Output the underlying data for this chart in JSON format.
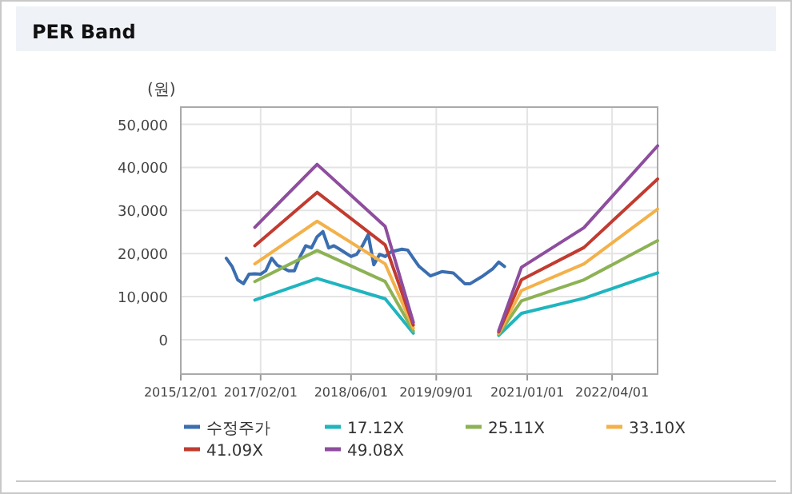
{
  "chart_data": {
    "type": "line",
    "title": "PER Band",
    "ylabel": "(원)",
    "xlim": [
      "2015-12-01",
      "2022-12-01"
    ],
    "xticks": [
      {
        "value": "2015-12-01",
        "label": "2015/12/01"
      },
      {
        "value": "2017-02-01",
        "label": "2017/02/01"
      },
      {
        "value": "2018-06-01",
        "label": "2018/06/01"
      },
      {
        "value": "2019-09-01",
        "label": "2019/09/01"
      },
      {
        "value": "2021-01-01",
        "label": "2021/01/01"
      },
      {
        "value": "2022-04-01",
        "label": "2022/04/01"
      }
    ],
    "ylim": [
      -8000,
      54000
    ],
    "yticks": [
      0,
      {
        "value": 10000,
        "label": "10,000"
      },
      {
        "value": 20000,
        "label": "20,000"
      },
      {
        "value": 30000,
        "label": "30,000"
      },
      {
        "value": 40000,
        "label": "40,000"
      },
      {
        "value": 50000,
        "label": "50,000"
      }
    ],
    "grid": true,
    "legend": "bottom",
    "marker": "none",
    "line_style": "solid",
    "series": [
      {
        "name": "수정주가",
        "color": "#3b6eb0",
        "x": [
          "2016-08",
          "2016-09",
          "2016-10",
          "2016-11",
          "2016-12",
          "2017-01",
          "2017-02",
          "2017-03",
          "2017-04",
          "2017-05",
          "2017-07",
          "2017-08",
          "2017-09",
          "2017-10",
          "2017-11",
          "2017-12",
          "2018-01",
          "2018-02",
          "2018-03",
          "2018-04",
          "2018-06",
          "2018-07",
          "2018-08",
          "2018-09",
          "2018-10",
          "2018-11",
          "2018-12",
          "2019-01",
          "2019-03",
          "2019-04",
          "2019-05",
          "2019-06",
          "2019-08",
          "2019-10",
          "2019-12",
          "2020-02",
          "2020-03",
          "2020-05",
          "2020-07",
          "2020-08",
          "2020-09"
        ],
        "values": [
          18900,
          17000,
          13900,
          13000,
          15200,
          15300,
          15200,
          16000,
          18900,
          17300,
          16000,
          16000,
          19300,
          21800,
          21300,
          23900,
          25100,
          21300,
          21800,
          21000,
          19300,
          19800,
          21800,
          24400,
          17400,
          19800,
          19300,
          20400,
          21000,
          20800,
          18900,
          17000,
          14800,
          15800,
          15500,
          13000,
          13000,
          14600,
          16500,
          18000,
          17000
        ]
      },
      {
        "name": "17.12X",
        "color": "#1fb5bf",
        "x": [
          "2017-01",
          "2017-12",
          "2018-12",
          "2019-05"
        ],
        "values": [
          9200,
          14200,
          9500,
          1500
        ]
      },
      {
        "name": "25.11X",
        "color": "#8db255",
        "x": [
          "2017-01",
          "2017-12",
          "2018-12",
          "2019-05"
        ],
        "values": [
          13500,
          20700,
          13500,
          2000
        ]
      },
      {
        "name": "33.10X",
        "color": "#f3b14a",
        "x": [
          "2017-01",
          "2017-12",
          "2018-12",
          "2019-05"
        ],
        "values": [
          17600,
          27500,
          17600,
          2700
        ]
      },
      {
        "name": "41.09X",
        "color": "#c23b30",
        "x": [
          "2017-01",
          "2017-12",
          "2018-12",
          "2019-05"
        ],
        "values": [
          21800,
          34200,
          22000,
          3400
        ]
      },
      {
        "name": "49.08X",
        "color": "#8e4d9e",
        "x": [
          "2017-01",
          "2017-12",
          "2018-12",
          "2019-05"
        ],
        "values": [
          26100,
          40700,
          26300,
          4000
        ]
      },
      {
        "color": "#1fb5bf",
        "x": [
          "2020-08",
          "2020-12",
          "2021-11",
          "2022-12"
        ],
        "values": [
          1000,
          6100,
          9600,
          15500
        ]
      },
      {
        "color": "#8db255",
        "x": [
          "2020-08",
          "2020-12",
          "2021-11",
          "2022-12"
        ],
        "values": [
          1300,
          9000,
          13900,
          23000
        ]
      },
      {
        "color": "#f3b14a",
        "x": [
          "2020-08",
          "2020-12",
          "2021-11",
          "2022-12"
        ],
        "values": [
          1500,
          11400,
          17600,
          30300
        ]
      },
      {
        "color": "#c23b30",
        "x": [
          "2020-08",
          "2020-12",
          "2021-11",
          "2022-12"
        ],
        "values": [
          1800,
          13900,
          21400,
          37300
        ]
      },
      {
        "color": "#8e4d9e",
        "x": [
          "2020-08",
          "2020-12",
          "2021-11",
          "2022-12"
        ],
        "values": [
          2100,
          16800,
          26000,
          45000
        ]
      }
    ]
  }
}
